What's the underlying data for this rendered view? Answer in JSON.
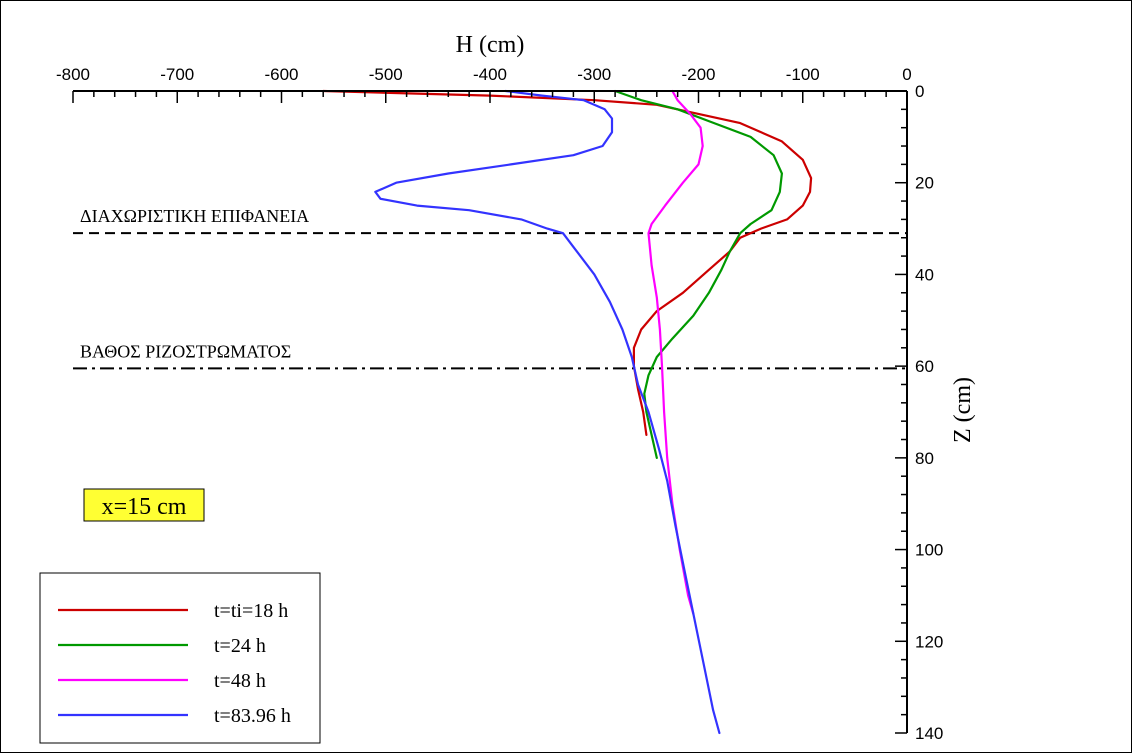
{
  "chart_data": {
    "type": "line",
    "xlabel": "H  (cm)",
    "ylabel": "Z  (cm)",
    "xlim": [
      -800,
      0
    ],
    "ylim": [
      0,
      140
    ],
    "y_inverted": true,
    "x_axis_position": "top",
    "y_axis_position": "right",
    "x_ticks": [
      -800,
      -700,
      -600,
      -500,
      -400,
      -300,
      -200,
      -100,
      0
    ],
    "y_ticks": [
      0,
      20,
      40,
      60,
      80,
      100,
      120,
      140
    ],
    "reference_lines": [
      {
        "label": "ΔΙΑΧΩΡΙΣΤΙΚΗ  ΕΠΙΦΑΝΕΙΑ",
        "z": 31,
        "style": "dashed"
      },
      {
        "label": "ΒΑΘΟΣ   ΡΙΖΟΣΤΡΩΜΑΤΟΣ",
        "z": 60.5,
        "style": "dash-dot"
      }
    ],
    "annotation": "x=15 cm",
    "legend_position": "bottom-left",
    "series": [
      {
        "name": "t=ti=18 h",
        "color": "#cc0000",
        "points": [
          [
            -560,
            0
          ],
          [
            -400,
            1
          ],
          [
            -300,
            2
          ],
          [
            -240,
            3
          ],
          [
            -200,
            5
          ],
          [
            -160,
            7
          ],
          [
            -120,
            11
          ],
          [
            -100,
            15
          ],
          [
            -92,
            19
          ],
          [
            -93,
            22
          ],
          [
            -100,
            25
          ],
          [
            -115,
            28
          ],
          [
            -140,
            30
          ],
          [
            -160,
            32
          ],
          [
            -170,
            35
          ],
          [
            -190,
            39
          ],
          [
            -215,
            44
          ],
          [
            -240,
            48
          ],
          [
            -255,
            52
          ],
          [
            -262,
            56
          ],
          [
            -262,
            60
          ],
          [
            -258,
            65
          ],
          [
            -253,
            70
          ],
          [
            -250,
            75
          ]
        ]
      },
      {
        "name": "t=24 h",
        "color": "#009900",
        "points": [
          [
            -280,
            0
          ],
          [
            -255,
            2
          ],
          [
            -220,
            4
          ],
          [
            -185,
            7
          ],
          [
            -150,
            10
          ],
          [
            -128,
            14
          ],
          [
            -120,
            18
          ],
          [
            -122,
            22
          ],
          [
            -130,
            26
          ],
          [
            -150,
            29
          ],
          [
            -160,
            31
          ],
          [
            -170,
            35
          ],
          [
            -178,
            39
          ],
          [
            -190,
            44
          ],
          [
            -205,
            49
          ],
          [
            -225,
            54
          ],
          [
            -240,
            58
          ],
          [
            -248,
            62
          ],
          [
            -252,
            66
          ],
          [
            -250,
            70
          ],
          [
            -245,
            75
          ],
          [
            -240,
            80
          ]
        ]
      },
      {
        "name": "t=48 h",
        "color": "#ff00ff",
        "points": [
          [
            -225,
            0
          ],
          [
            -220,
            2
          ],
          [
            -208,
            5
          ],
          [
            -198,
            8
          ],
          [
            -196,
            12
          ],
          [
            -200,
            16
          ],
          [
            -215,
            20
          ],
          [
            -232,
            25
          ],
          [
            -245,
            29
          ],
          [
            -248,
            31
          ],
          [
            -245,
            38
          ],
          [
            -240,
            45
          ],
          [
            -237,
            52
          ],
          [
            -235,
            60
          ],
          [
            -233,
            70
          ],
          [
            -230,
            80
          ],
          [
            -225,
            90
          ],
          [
            -218,
            100
          ],
          [
            -210,
            110
          ],
          [
            -205,
            114
          ]
        ]
      },
      {
        "name": "t=83.96 h",
        "color": "#3333ff",
        "points": [
          [
            -385,
            0
          ],
          [
            -350,
            1
          ],
          [
            -310,
            2
          ],
          [
            -290,
            4
          ],
          [
            -283,
            6
          ],
          [
            -283,
            9
          ],
          [
            -292,
            12
          ],
          [
            -320,
            14
          ],
          [
            -380,
            16
          ],
          [
            -440,
            18
          ],
          [
            -490,
            20
          ],
          [
            -510,
            22
          ],
          [
            -505,
            23.5
          ],
          [
            -470,
            25
          ],
          [
            -420,
            26
          ],
          [
            -370,
            28
          ],
          [
            -345,
            30
          ],
          [
            -330,
            31
          ],
          [
            -320,
            34
          ],
          [
            -300,
            40
          ],
          [
            -285,
            46
          ],
          [
            -273,
            52
          ],
          [
            -264,
            58
          ],
          [
            -258,
            64
          ],
          [
            -248,
            70
          ],
          [
            -238,
            78
          ],
          [
            -230,
            85
          ],
          [
            -222,
            95
          ],
          [
            -213,
            105
          ],
          [
            -204,
            115
          ],
          [
            -195,
            125
          ],
          [
            -186,
            135
          ],
          [
            -180,
            140
          ]
        ]
      }
    ]
  }
}
